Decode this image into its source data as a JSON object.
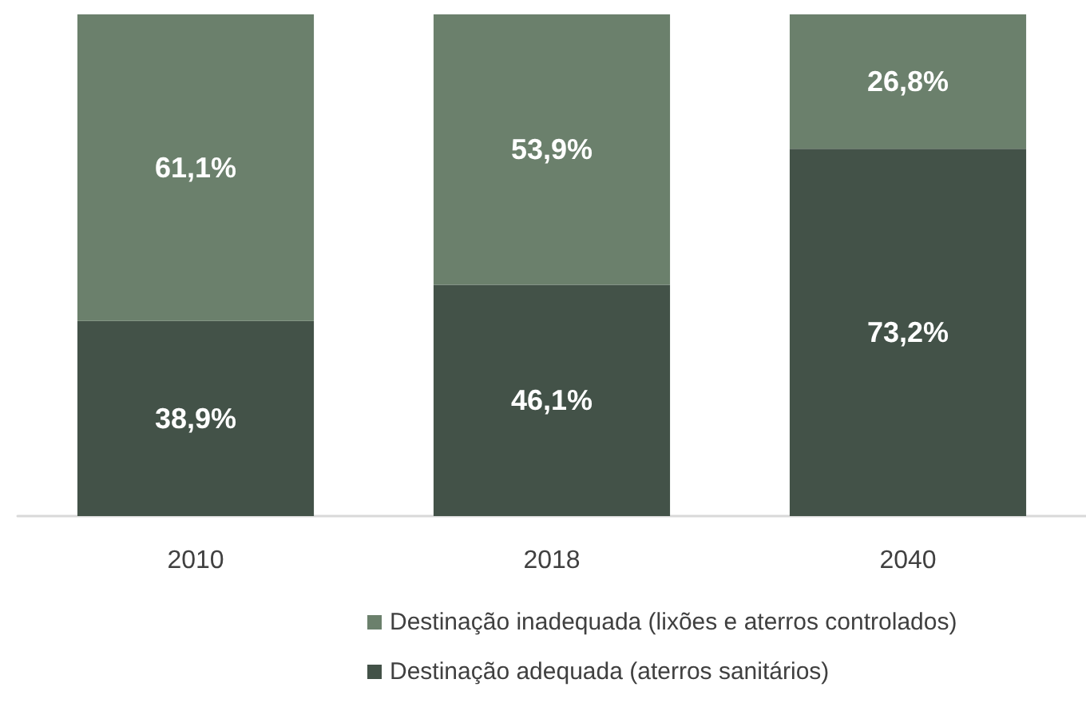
{
  "chart_data": {
    "type": "bar",
    "categories": [
      "2010",
      "2018",
      "2040"
    ],
    "stacked": true,
    "ylim": [
      0,
      100
    ],
    "tick_labels": "x",
    "legend": "bottom",
    "series": [
      {
        "name": "Destinação adequada (aterros sanitários)",
        "color": "#435248",
        "values": [
          38.9,
          46.1,
          73.2
        ],
        "value_labels": [
          "38,9%",
          "46,1%",
          "73,2%"
        ]
      },
      {
        "name": "Destinação inadequada (lixões e aterros controlados)",
        "color": "#6b806c",
        "values": [
          61.1,
          53.9,
          26.8
        ],
        "value_labels": [
          "61,1%",
          "53,9%",
          "26,8%"
        ]
      }
    ]
  }
}
